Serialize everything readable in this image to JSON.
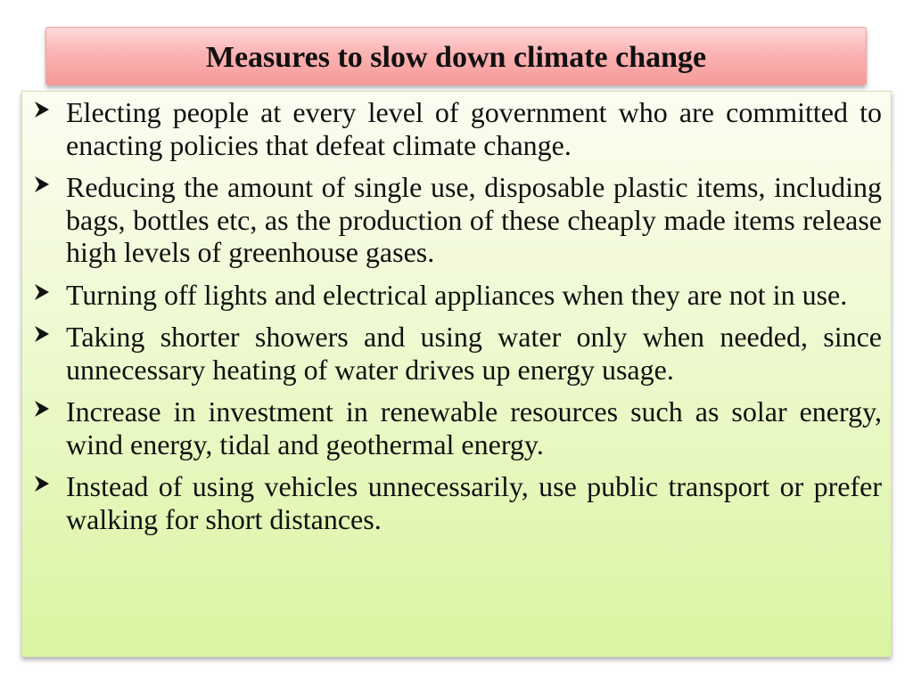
{
  "title": "Measures to slow down climate change",
  "bullet_icon": "arrowhead-bullet-icon",
  "items": [
    {
      "text": "Electing people at every level of government who are committed to enacting policies that defeat climate change."
    },
    {
      "text": "Reducing the amount of single use, disposable plastic items, including bags, bottles etc, as the production of these cheaply made items release high levels of greenhouse gases."
    },
    {
      "text": "Turning off lights and electrical appliances when they are not in use."
    },
    {
      "text": "Taking shorter showers and using water only when needed, since unnecessary heating of water drives up energy usage."
    },
    {
      "text": "Increase in investment in renewable resources such as solar energy, wind energy, tidal and geothermal energy."
    },
    {
      "text": "Instead of using vehicles unnecessarily, use public transport or prefer walking for short distances."
    }
  ],
  "colors": {
    "title_gradient_top": "#fddada",
    "title_gradient_bottom": "#f79a9a",
    "content_gradient_top": "#fbfdf1",
    "content_gradient_bottom": "#d9f5a1",
    "text": "#111111"
  }
}
